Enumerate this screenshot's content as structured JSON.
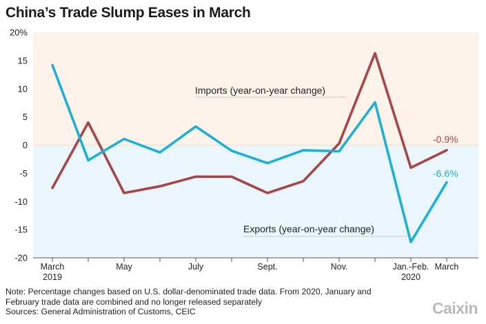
{
  "title": "China’s Trade Slump Eases in March",
  "chart_data": {
    "type": "line",
    "title": "China’s Trade Slump Eases in March",
    "x": [
      "March 2019",
      "Apr 2019",
      "May 2019",
      "Jun 2019",
      "Jul 2019",
      "Aug 2019",
      "Sep 2019",
      "Oct 2019",
      "Nov 2019",
      "Dec 2019",
      "Jan.-Feb. 2020",
      "March 2020"
    ],
    "x_tick_labels": [
      {
        "lines": [
          "March",
          "2019"
        ],
        "index": 0
      },
      {
        "lines": [
          "May"
        ],
        "index": 2
      },
      {
        "lines": [
          "July"
        ],
        "index": 4
      },
      {
        "lines": [
          "Sept."
        ],
        "index": 6
      },
      {
        "lines": [
          "Nov."
        ],
        "index": 8
      },
      {
        "lines": [
          "Jan.-Feb.",
          "2020"
        ],
        "index": 10
      },
      {
        "lines": [
          "March"
        ],
        "index": 11
      }
    ],
    "y_ticks": [
      "20%",
      "15",
      "10",
      "5",
      "0",
      "-5",
      "-10",
      "-15",
      "-20"
    ],
    "y_tick_values": [
      20,
      15,
      10,
      5,
      0,
      -5,
      -10,
      -15,
      -20
    ],
    "ylim": [
      -20,
      20
    ],
    "grid": false,
    "background_bands": {
      "positive": "#fdf3ea",
      "negative": "#eaf6fb"
    },
    "series": [
      {
        "name": "Imports (year-on-year change)",
        "color": "#a64545",
        "values": [
          -7.6,
          4.0,
          -8.5,
          -7.3,
          -5.6,
          -5.6,
          -8.5,
          -6.4,
          0.3,
          16.3,
          -4.0,
          -0.9
        ],
        "end_label": "-0.9%"
      },
      {
        "name": "Exports (year-on-year change)",
        "color": "#1bb0d6",
        "values": [
          14.2,
          -2.7,
          1.1,
          -1.3,
          3.3,
          -1.0,
          -3.2,
          -0.9,
          -1.1,
          7.6,
          -17.2,
          -6.6
        ],
        "end_label": "-6.6%"
      }
    ]
  },
  "note_lines": [
    "Note: Percentage changes based on U.S. dollar-denominated trade data. From 2020, January and",
    "February trade data are combined and no longer released separately",
    "Sources: General Administration of Customs, CEIC"
  ],
  "logo": "Caixin"
}
